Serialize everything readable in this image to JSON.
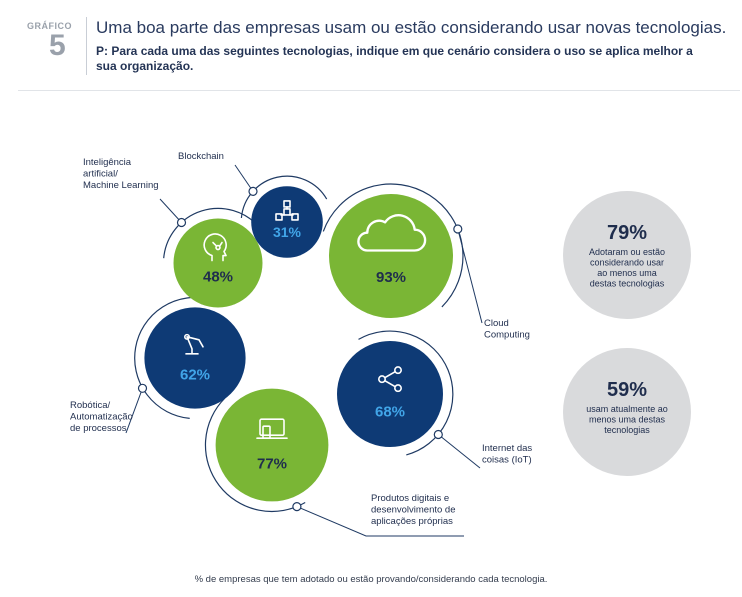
{
  "header": {
    "label": "GRÁFICO",
    "number": "5",
    "title": "Uma boa parte das empresas usam ou estão considerando usar novas tecnologias.",
    "question": "P: Para cada uma das seguintes tecnologias, indique em que cenário considera o uso se aplica melhor a sua organização."
  },
  "chart_data": {
    "type": "bubble",
    "unit": "%",
    "categories": [
      "Cloud Computing",
      "Internet das coisas (IoT)",
      "Produtos digitais e desenvolvimento de aplicações próprias",
      "Robótica/ Automatização de processos",
      "Inteligência artificial/ Machine Learning",
      "Blockchain"
    ],
    "values": [
      93,
      68,
      77,
      62,
      48,
      31
    ],
    "items": [
      {
        "label_lines": [
          "Cloud",
          "Computing"
        ],
        "value": 93,
        "value_label": "93%",
        "color": "#7ab635",
        "icon": "cloud-icon"
      },
      {
        "label_lines": [
          "Internet das",
          "coisas (IoT)"
        ],
        "value": 68,
        "value_label": "68%",
        "color": "#0e3a75",
        "icon": "share-icon"
      },
      {
        "label_lines": [
          "Produtos digitais e",
          "desenvolvimento de",
          "aplicações próprias"
        ],
        "value": 77,
        "value_label": "77%",
        "color": "#7ab635",
        "icon": "devices-icon"
      },
      {
        "label_lines": [
          "Robótica/",
          "Automatização",
          "de processos"
        ],
        "value": 62,
        "value_label": "62%",
        "color": "#0e3a75",
        "icon": "robot-arm-icon"
      },
      {
        "label_lines": [
          "Inteligência",
          "artificial/",
          "Machine Learning"
        ],
        "value": 48,
        "value_label": "48%",
        "color": "#7ab635",
        "icon": "brain-icon"
      },
      {
        "label_lines": [
          "Blockchain"
        ],
        "value": 31,
        "value_label": "31%",
        "color": "#0e3a75",
        "icon": "blockchain-icon"
      }
    ],
    "summary": [
      {
        "value_label": "79%",
        "text_lines": [
          "Adotaram ou estão",
          "considerando usar",
          "ao menos uma",
          "destas tecnologias"
        ]
      },
      {
        "value_label": "59%",
        "text_lines": [
          "usam atualmente ao",
          "menos uma destas",
          "tecnologias"
        ]
      }
    ],
    "colors": {
      "green": "#7ab635",
      "navy": "#0e3a75",
      "grey": "#d9dadc",
      "line": "#1f3a63"
    }
  },
  "footnote": "% de empresas que tem adotado ou estão provando/considerando cada tecnologia."
}
